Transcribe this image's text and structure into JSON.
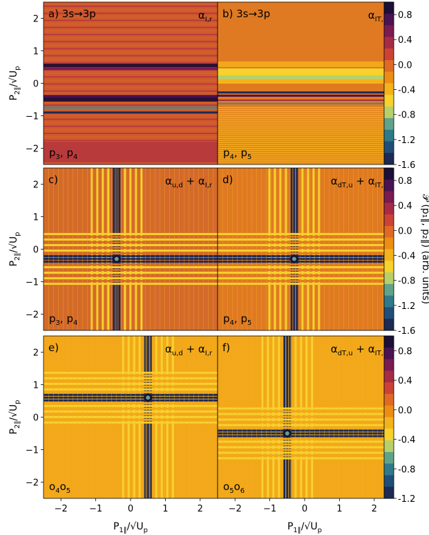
{
  "colors": {
    "colormap": [
      "#1a1038",
      "#4b1352",
      "#7a1b52",
      "#a82b45",
      "#cc4236",
      "#e06a24",
      "#ee8d14",
      "#f4b31c",
      "#f7d22e",
      "#b9d06a",
      "#5fa38a",
      "#2f7a8a",
      "#1f4f78",
      "#1c2a55"
    ],
    "background": "#d05a2c",
    "stripe_dark": "#2a1030",
    "stripe_red": "#b93a3a",
    "stripe_yellow": "#f8cf2b",
    "stripe_teal": "#3e8c8c"
  },
  "chart_data": [
    {
      "panel": "a",
      "row": 0,
      "col": 0,
      "type": "heatmap",
      "label": "a) 3s→3p",
      "term": "α",
      "term_sub": "I,r",
      "corner": "p",
      "corner_sub1": "3",
      "corner_sep": ", p",
      "corner_sub2": "4",
      "pattern": "horizontal-stripes",
      "features": [
        0.55,
        -0.5
      ],
      "base": "#cf5a2c"
    },
    {
      "panel": "b",
      "row": 0,
      "col": 1,
      "type": "heatmap",
      "label": "b) 3s→3p",
      "term": "α",
      "term_sub": "IT,r",
      "corner": "p",
      "corner_sub1": "4",
      "corner_sep": ", p",
      "corner_sub2": "5",
      "pattern": "horizontal-stripes-b",
      "features": [
        -0.3,
        -0.55
      ],
      "base": "#e07a22"
    },
    {
      "panel": "c",
      "row": 1,
      "col": 0,
      "type": "heatmap",
      "label": "c)",
      "term": "α",
      "term_sub": "u,d",
      "term2": " + α",
      "term2_sub": "I,r",
      "corner": "p",
      "corner_sub1": "3",
      "corner_sep": ", p",
      "corner_sub2": "4",
      "pattern": "cross",
      "features": [
        -0.4,
        -0.3
      ],
      "base": "#d46a2a"
    },
    {
      "panel": "d",
      "row": 1,
      "col": 1,
      "type": "heatmap",
      "label": "d)",
      "term": "α",
      "term_sub": "dT,u",
      "term2": " + α",
      "term2_sub": "IT,r",
      "corner": "p",
      "corner_sub1": "4",
      "corner_sep": ", p",
      "corner_sub2": "5",
      "pattern": "cross",
      "features": [
        -0.3,
        -0.3
      ],
      "base": "#e07a22"
    },
    {
      "panel": "e",
      "row": 2,
      "col": 0,
      "type": "heatmap",
      "label": "e)",
      "term": "α",
      "term_sub": "u,d",
      "term2": " + α",
      "term2_sub": "I,r",
      "corner": "o",
      "corner_sub1": "4",
      "corner_sep": "o",
      "corner_sub2": "5",
      "pattern": "cross",
      "features": [
        0.5,
        0.6
      ],
      "base": "#f2a81a"
    },
    {
      "panel": "f",
      "row": 2,
      "col": 1,
      "type": "heatmap",
      "label": "f)",
      "term": "α",
      "term_sub": "dT,u",
      "term2": " + α",
      "term2_sub": "IT,r",
      "corner": "o",
      "corner_sub1": "5",
      "corner_sep": "o",
      "corner_sub2": "6",
      "pattern": "cross",
      "features": [
        -0.5,
        -0.5
      ],
      "base": "#f2a81a"
    }
  ],
  "axes": {
    "xlim": [
      -2.5,
      2.5
    ],
    "ylim": [
      -2.5,
      2.5
    ],
    "xticks": [
      "−2",
      "−1",
      "0",
      "1",
      "2"
    ],
    "xtick_values": [
      -2,
      -1,
      0,
      1,
      2
    ],
    "yticks": [
      "2",
      "1",
      "0",
      "−1",
      "−2"
    ],
    "ytick_values": [
      2,
      1,
      0,
      -1,
      -2
    ],
    "xlabel": "P",
    "xlabel_sub": "1∥",
    "xlabel_rest": "/√U",
    "xlabel_rest_sub": "p",
    "ylabel": "P",
    "ylabel_sub": "2∥",
    "ylabel_rest": "/√U",
    "ylabel_rest_sub": "p"
  },
  "colorbars": [
    {
      "row": 0,
      "ticks": [
        "0.8",
        "0.4",
        "0.0",
        "-0.4",
        "-0.8",
        "-1.2",
        "-1.6"
      ],
      "values": [
        0.8,
        0.4,
        0.0,
        -0.4,
        -0.8,
        -1.2,
        -1.6
      ],
      "range": [
        -1.6,
        1.0
      ]
    },
    {
      "row": 1,
      "ticks": [
        "0.8",
        "0.4",
        "0.0",
        "-0.4",
        "-0.8",
        "-1.2",
        "-1.6"
      ],
      "values": [
        0.8,
        0.4,
        0.0,
        -0.4,
        -0.8,
        -1.2,
        -1.6
      ],
      "range": [
        -1.6,
        1.0
      ]
    },
    {
      "row": 2,
      "ticks": [
        "0.8",
        "0.4",
        "0.0",
        "-0.4",
        "-0.8",
        "-1.2"
      ],
      "values": [
        0.8,
        0.4,
        0.0,
        -0.4,
        -0.8,
        -1.2
      ],
      "range": [
        -1.2,
        1.0
      ]
    }
  ],
  "colorbar_label": "𝒫 (p₁∥, p₂∥) (arb. units)"
}
